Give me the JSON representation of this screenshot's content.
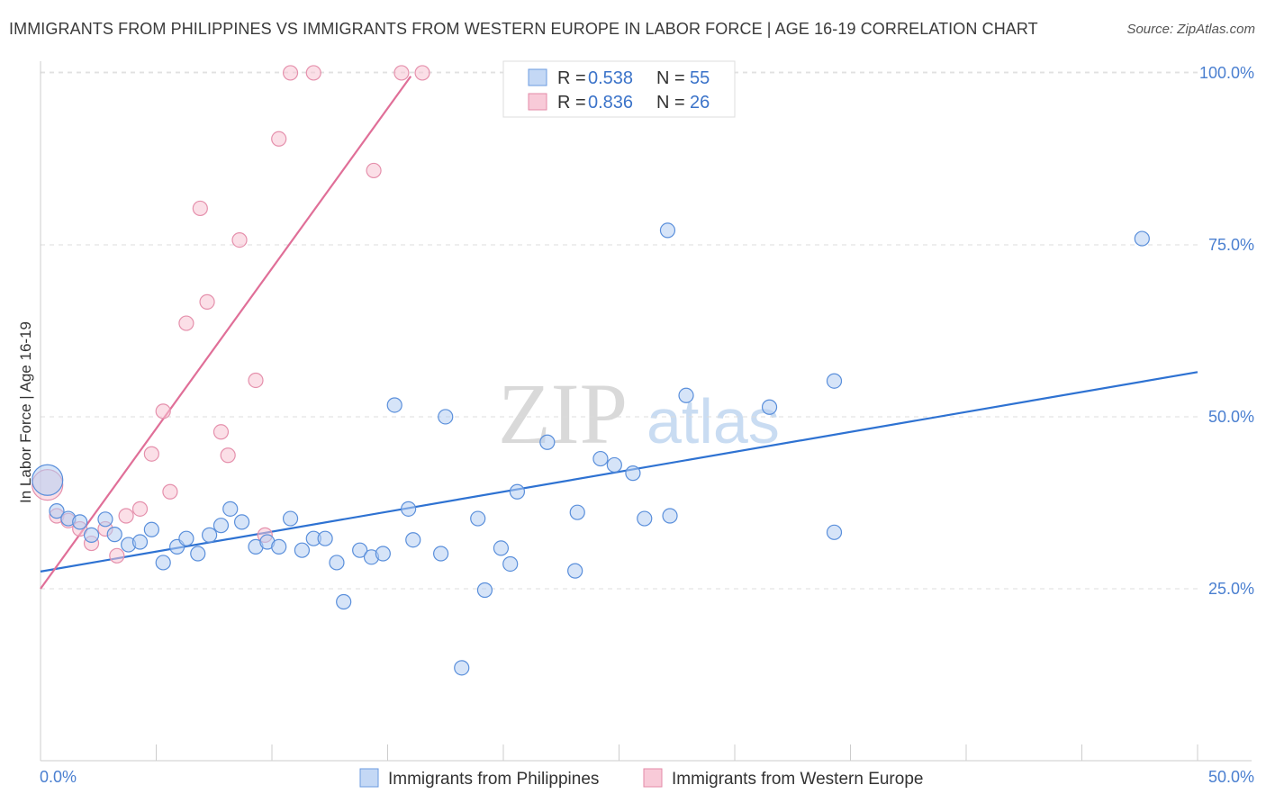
{
  "header": {
    "title": "IMMIGRANTS FROM PHILIPPINES VS IMMIGRANTS FROM WESTERN EUROPE IN LABOR FORCE | AGE 16-19 CORRELATION CHART",
    "source": "Source: ZipAtlas.com"
  },
  "watermark": {
    "zip": "ZIP",
    "atlas": "atlas"
  },
  "legend": {
    "rows": [
      {
        "r_label": "R = ",
        "r_value": "0.538",
        "n_label": "N = ",
        "n_value": "55"
      },
      {
        "r_label": "R = ",
        "r_value": "0.836",
        "n_label": "N = ",
        "n_value": "26"
      }
    ]
  },
  "chart_data": {
    "type": "scatter",
    "title": "IMMIGRANTS FROM PHILIPPINES VS IMMIGRANTS FROM WESTERN EUROPE IN LABOR FORCE | AGE 16-19 CORRELATION CHART",
    "xlabel": "",
    "ylabel": "In Labor Force | Age 16-19",
    "xlim": [
      0,
      50
    ],
    "ylim": [
      0,
      103
    ],
    "x_tick_labels": [
      "0.0%",
      "50.0%"
    ],
    "y_ticks": [
      25,
      50,
      75,
      100
    ],
    "y_tick_labels": [
      "25.0%",
      "50.0%",
      "75.0%",
      "100.0%"
    ],
    "grid": "horizontal dashed",
    "legend_position": "top-center",
    "colors": {
      "philippines": "#4a86d8",
      "western_europe": "#e07a9a"
    },
    "series": [
      {
        "name": "Immigrants from Philippines",
        "r": 0.538,
        "n": 55,
        "trend": {
          "x": [
            0,
            50
          ],
          "y": [
            27.5,
            56.5
          ]
        },
        "points": [
          {
            "x": 0.3,
            "y": 40.8,
            "big": true
          },
          {
            "x": 0.7,
            "y": 36.3
          },
          {
            "x": 1.2,
            "y": 35.2
          },
          {
            "x": 1.7,
            "y": 34.7
          },
          {
            "x": 2.2,
            "y": 32.8
          },
          {
            "x": 2.8,
            "y": 35.1
          },
          {
            "x": 3.2,
            "y": 32.9
          },
          {
            "x": 3.8,
            "y": 31.4
          },
          {
            "x": 4.3,
            "y": 31.8
          },
          {
            "x": 4.8,
            "y": 33.6
          },
          {
            "x": 5.3,
            "y": 28.8
          },
          {
            "x": 5.9,
            "y": 31.1
          },
          {
            "x": 6.3,
            "y": 32.3
          },
          {
            "x": 6.8,
            "y": 30.1
          },
          {
            "x": 7.3,
            "y": 32.8
          },
          {
            "x": 7.8,
            "y": 34.2
          },
          {
            "x": 8.2,
            "y": 36.6
          },
          {
            "x": 8.7,
            "y": 34.7
          },
          {
            "x": 9.3,
            "y": 31.1
          },
          {
            "x": 9.8,
            "y": 31.8
          },
          {
            "x": 10.3,
            "y": 31.1
          },
          {
            "x": 10.8,
            "y": 35.2
          },
          {
            "x": 11.3,
            "y": 30.6
          },
          {
            "x": 11.8,
            "y": 32.3
          },
          {
            "x": 12.3,
            "y": 32.3
          },
          {
            "x": 12.8,
            "y": 28.8
          },
          {
            "x": 13.1,
            "y": 23.1
          },
          {
            "x": 13.8,
            "y": 30.6
          },
          {
            "x": 14.3,
            "y": 29.6
          },
          {
            "x": 14.8,
            "y": 30.1
          },
          {
            "x": 15.3,
            "y": 51.7
          },
          {
            "x": 15.9,
            "y": 36.6
          },
          {
            "x": 16.1,
            "y": 32.1
          },
          {
            "x": 17.3,
            "y": 30.1
          },
          {
            "x": 17.5,
            "y": 50.0
          },
          {
            "x": 18.2,
            "y": 13.5
          },
          {
            "x": 18.9,
            "y": 35.2
          },
          {
            "x": 19.2,
            "y": 24.8
          },
          {
            "x": 19.9,
            "y": 30.9
          },
          {
            "x": 20.3,
            "y": 28.6
          },
          {
            "x": 20.6,
            "y": 39.1
          },
          {
            "x": 21.9,
            "y": 46.3
          },
          {
            "x": 23.1,
            "y": 27.6
          },
          {
            "x": 23.2,
            "y": 36.1
          },
          {
            "x": 24.2,
            "y": 43.9
          },
          {
            "x": 24.8,
            "y": 43.0
          },
          {
            "x": 25.6,
            "y": 41.8
          },
          {
            "x": 26.1,
            "y": 35.2
          },
          {
            "x": 27.1,
            "y": 77.1
          },
          {
            "x": 27.2,
            "y": 35.6
          },
          {
            "x": 27.9,
            "y": 53.1
          },
          {
            "x": 31.5,
            "y": 51.4
          },
          {
            "x": 34.3,
            "y": 55.2
          },
          {
            "x": 34.3,
            "y": 33.2
          },
          {
            "x": 47.6,
            "y": 75.9
          }
        ]
      },
      {
        "name": "Immigrants from Western Europe",
        "r": 0.836,
        "n": 26,
        "trend": {
          "x": [
            0,
            16
          ],
          "y": [
            25.0,
            99.5
          ]
        },
        "points": [
          {
            "x": 0.3,
            "y": 40.1,
            "big": true
          },
          {
            "x": 0.7,
            "y": 35.6
          },
          {
            "x": 1.2,
            "y": 34.9
          },
          {
            "x": 1.7,
            "y": 33.7
          },
          {
            "x": 2.2,
            "y": 31.6
          },
          {
            "x": 2.8,
            "y": 33.7
          },
          {
            "x": 3.3,
            "y": 29.8
          },
          {
            "x": 3.7,
            "y": 35.6
          },
          {
            "x": 4.3,
            "y": 36.6
          },
          {
            "x": 4.8,
            "y": 44.6
          },
          {
            "x": 5.3,
            "y": 50.8
          },
          {
            "x": 5.6,
            "y": 39.1
          },
          {
            "x": 6.3,
            "y": 63.6
          },
          {
            "x": 6.9,
            "y": 80.3
          },
          {
            "x": 7.2,
            "y": 66.7
          },
          {
            "x": 7.8,
            "y": 47.8
          },
          {
            "x": 8.1,
            "y": 44.4
          },
          {
            "x": 8.6,
            "y": 75.7
          },
          {
            "x": 9.3,
            "y": 55.3
          },
          {
            "x": 9.7,
            "y": 32.8
          },
          {
            "x": 10.3,
            "y": 90.4
          },
          {
            "x": 10.8,
            "y": 100.0
          },
          {
            "x": 11.8,
            "y": 100.0
          },
          {
            "x": 14.4,
            "y": 85.8
          },
          {
            "x": 15.6,
            "y": 100.0
          },
          {
            "x": 16.5,
            "y": 100.0
          }
        ]
      }
    ]
  }
}
